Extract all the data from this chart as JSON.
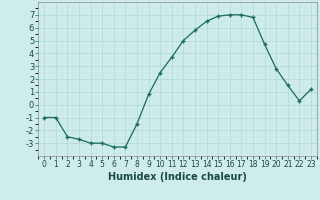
{
  "x": [
    0,
    1,
    2,
    3,
    4,
    5,
    6,
    7,
    8,
    9,
    10,
    11,
    12,
    13,
    14,
    15,
    16,
    17,
    18,
    19,
    20,
    21,
    22,
    23
  ],
  "y": [
    -1,
    -1,
    -2.5,
    -2.7,
    -3,
    -3,
    -3.3,
    -3.3,
    -1.5,
    0.8,
    2.5,
    3.7,
    5,
    5.8,
    6.5,
    6.9,
    7,
    7,
    6.8,
    4.7,
    2.8,
    1.5,
    0.3,
    1.2
  ],
  "line_color": "#1a6b5a",
  "marker": "+",
  "marker_size": 3,
  "linewidth": 0.9,
  "xlabel": "Humidex (Indice chaleur)",
  "xlabel_fontsize": 7,
  "xlabel_fontweight": "bold",
  "ylim": [
    -4,
    8
  ],
  "xlim": [
    -0.5,
    23.5
  ],
  "yticks": [
    -3,
    -2,
    -1,
    0,
    1,
    2,
    3,
    4,
    5,
    6,
    7
  ],
  "xticks": [
    0,
    1,
    2,
    3,
    4,
    5,
    6,
    7,
    8,
    9,
    10,
    11,
    12,
    13,
    14,
    15,
    16,
    17,
    18,
    19,
    20,
    21,
    22,
    23
  ],
  "background_color": "#ceecea",
  "tick_fontsize": 6
}
